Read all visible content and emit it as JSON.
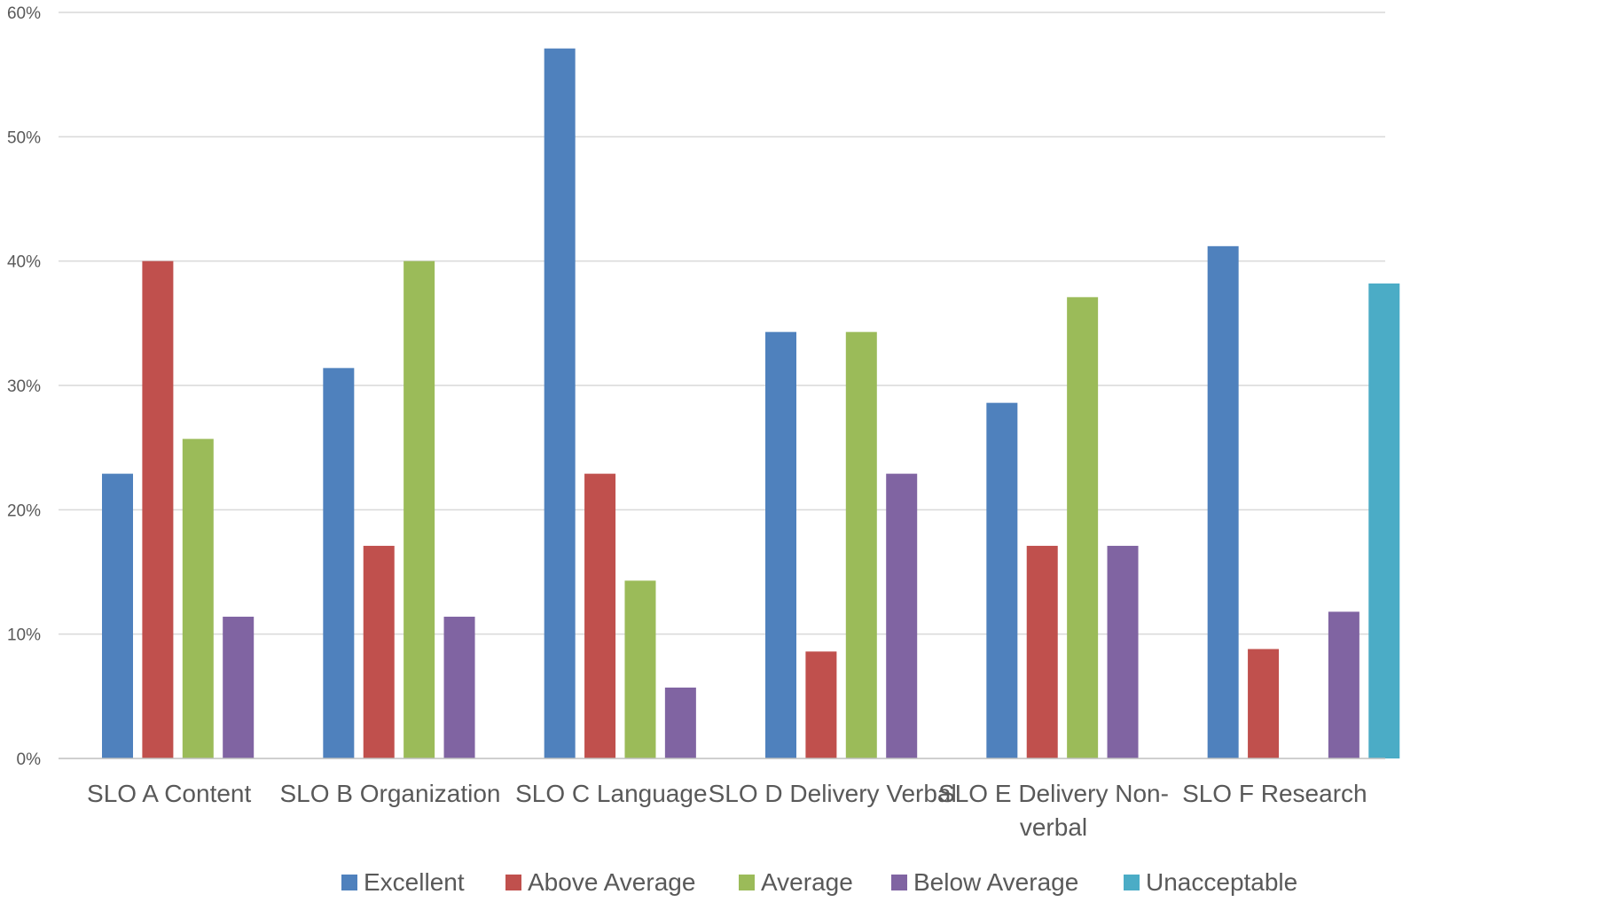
{
  "chart_data": {
    "type": "bar",
    "title": "",
    "xlabel": "",
    "ylabel": "",
    "ylim": [
      0,
      60
    ],
    "y_ticks": [
      "0%",
      "10%",
      "20%",
      "30%",
      "40%",
      "50%",
      "60%"
    ],
    "y_tick_values": [
      0,
      10,
      20,
      30,
      40,
      50,
      60
    ],
    "grid": true,
    "legend_position": "bottom",
    "categories": [
      [
        "SLO A Content"
      ],
      [
        "SLO B Organization"
      ],
      [
        "SLO C Language"
      ],
      [
        "SLO D Delivery Verbal"
      ],
      [
        "SLO E Delivery Non-",
        "verbal"
      ],
      [
        "SLO F Research"
      ]
    ],
    "series": [
      {
        "name": "Excellent",
        "color": "#4f81bd",
        "values": [
          22.9,
          31.4,
          57.1,
          34.3,
          28.6,
          41.2
        ]
      },
      {
        "name": "Above Average",
        "color": "#c0504d",
        "values": [
          40.0,
          17.1,
          22.9,
          8.6,
          17.1,
          8.8
        ]
      },
      {
        "name": "Average",
        "color": "#9bbb59",
        "values": [
          25.7,
          40.0,
          14.3,
          34.3,
          37.1,
          0
        ]
      },
      {
        "name": "Below Average",
        "color": "#8064a2",
        "values": [
          11.4,
          11.4,
          5.7,
          22.9,
          17.1,
          11.8
        ]
      },
      {
        "name": "Unacceptable",
        "color": "#4bacc6",
        "values": [
          0,
          0,
          0,
          0,
          0,
          38.2
        ]
      }
    ]
  }
}
